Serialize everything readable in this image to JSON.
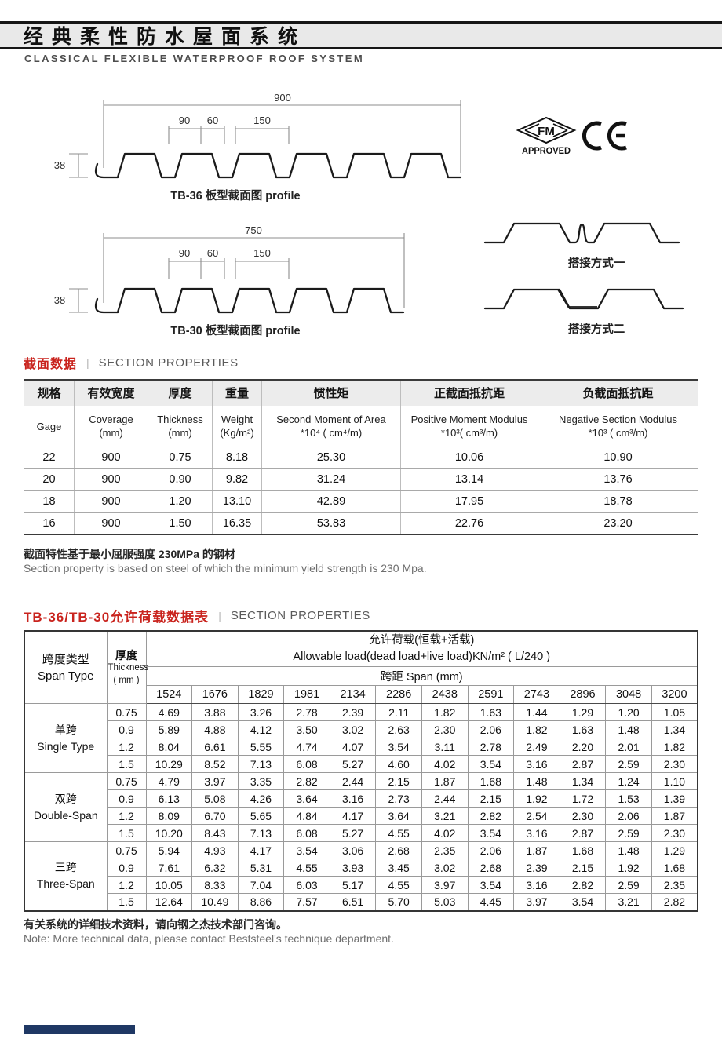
{
  "page": {
    "title_cn": "经典柔性防水屋面系统",
    "subtitle_en": "CLASSICAL FLEXIBLE WATERPROOF ROOF SYSTEM"
  },
  "colors": {
    "accent_red": "#c9231d",
    "header_band": "#e9e9e9",
    "footer_bar": "#1f3864"
  },
  "drawings": {
    "profile_tb36": {
      "label": "TB-36 板型截面图 profile",
      "dim_overall": "900",
      "dim_a": "90",
      "dim_b": "60",
      "dim_c": "150",
      "dim_height": "38",
      "ribs": 6
    },
    "profile_tb30": {
      "label": "TB-30 板型截面图 profile",
      "dim_overall": "750",
      "dim_a": "90",
      "dim_b": "60",
      "dim_c": "150",
      "dim_height": "38",
      "ribs": 5
    },
    "lap_method_1": {
      "label": "搭接方式一"
    },
    "lap_method_2": {
      "label": "搭接方式二"
    },
    "certifications": {
      "fm_text": "FM",
      "fm_sub": "APPROVED"
    }
  },
  "section_properties": {
    "heading_cn": "截面数据",
    "heading_sep": "|",
    "heading_en": "SECTION PROPERTIES",
    "columns": [
      {
        "cn": "规格",
        "en": "Gage",
        "unit": ""
      },
      {
        "cn": "有效宽度",
        "en": "Coverage",
        "unit": "(mm)"
      },
      {
        "cn": "厚度",
        "en": "Thickness",
        "unit": "(mm)"
      },
      {
        "cn": "重量",
        "en": "Weight",
        "unit": "(Kg/m²)"
      },
      {
        "cn": "惯性矩",
        "en": "Second Moment of Area",
        "unit": "*10⁴ ( cm⁴/m)"
      },
      {
        "cn": "正截面抵抗距",
        "en": "Positive Moment Modulus",
        "unit": "*10³( cm³/m)"
      },
      {
        "cn": "负截面抵抗距",
        "en": "Negative Section Modulus",
        "unit": "*10³ ( cm³/m)"
      }
    ],
    "rows": [
      [
        "22",
        "900",
        "0.75",
        "8.18",
        "25.30",
        "10.06",
        "10.90"
      ],
      [
        "20",
        "900",
        "0.90",
        "9.82",
        "31.24",
        "13.14",
        "13.76"
      ],
      [
        "18",
        "900",
        "1.20",
        "13.10",
        "42.89",
        "17.95",
        "18.78"
      ],
      [
        "16",
        "900",
        "1.50",
        "16.35",
        "53.83",
        "22.76",
        "23.20"
      ]
    ],
    "note_cn": "截面特性基于最小屈服强度 230MPa 的钢材",
    "note_en": "Section property is based on steel of which the minimum yield strength is 230 Mpa."
  },
  "load_table": {
    "heading_cn": "TB-36/TB-30允许荷载数据表",
    "heading_sep": "|",
    "heading_en": "SECTION PROPERTIES",
    "span_type_cn": "跨度类型",
    "span_type_en": "Span Type",
    "thickness_cn": "厚度",
    "thickness_en": "Thickness",
    "thickness_unit": "( mm )",
    "load_header_cn": "允许荷载(恒载+活载)",
    "load_header_en": "Allowable load(dead load+live load)KN/m² ( L/240 )",
    "span_header": "跨距  Span (mm)",
    "spans": [
      "1524",
      "1676",
      "1829",
      "1981",
      "2134",
      "2286",
      "2438",
      "2591",
      "2743",
      "2896",
      "3048",
      "3200"
    ],
    "groups": [
      {
        "type_cn": "单跨",
        "type_en": "Single Type",
        "rows": [
          {
            "thickness": "0.75",
            "values": [
              "4.69",
              "3.88",
              "3.26",
              "2.78",
              "2.39",
              "2.11",
              "1.82",
              "1.63",
              "1.44",
              "1.29",
              "1.20",
              "1.05"
            ]
          },
          {
            "thickness": "0.9",
            "values": [
              "5.89",
              "4.88",
              "4.12",
              "3.50",
              "3.02",
              "2.63",
              "2.30",
              "2.06",
              "1.82",
              "1.63",
              "1.48",
              "1.34"
            ]
          },
          {
            "thickness": "1.2",
            "values": [
              "8.04",
              "6.61",
              "5.55",
              "4.74",
              "4.07",
              "3.54",
              "3.11",
              "2.78",
              "2.49",
              "2.20",
              "2.01",
              "1.82"
            ]
          },
          {
            "thickness": "1.5",
            "values": [
              "10.29",
              "8.52",
              "7.13",
              "6.08",
              "5.27",
              "4.60",
              "4.02",
              "3.54",
              "3.16",
              "2.87",
              "2.59",
              "2.30"
            ]
          }
        ]
      },
      {
        "type_cn": "双跨",
        "type_en": "Double-Span",
        "rows": [
          {
            "thickness": "0.75",
            "values": [
              "4.79",
              "3.97",
              "3.35",
              "2.82",
              "2.44",
              "2.15",
              "1.87",
              "1.68",
              "1.48",
              "1.34",
              "1.24",
              "1.10"
            ]
          },
          {
            "thickness": "0.9",
            "values": [
              "6.13",
              "5.08",
              "4.26",
              "3.64",
              "3.16",
              "2.73",
              "2.44",
              "2.15",
              "1.92",
              "1.72",
              "1.53",
              "1.39"
            ]
          },
          {
            "thickness": "1.2",
            "values": [
              "8.09",
              "6.70",
              "5.65",
              "4.84",
              "4.17",
              "3.64",
              "3.21",
              "2.82",
              "2.54",
              "2.30",
              "2.06",
              "1.87"
            ]
          },
          {
            "thickness": "1.5",
            "values": [
              "10.20",
              "8.43",
              "7.13",
              "6.08",
              "5.27",
              "4.55",
              "4.02",
              "3.54",
              "3.16",
              "2.87",
              "2.59",
              "2.30"
            ]
          }
        ]
      },
      {
        "type_cn": "三跨",
        "type_en": "Three-Span",
        "rows": [
          {
            "thickness": "0.75",
            "values": [
              "5.94",
              "4.93",
              "4.17",
              "3.54",
              "3.06",
              "2.68",
              "2.35",
              "2.06",
              "1.87",
              "1.68",
              "1.48",
              "1.29"
            ]
          },
          {
            "thickness": "0.9",
            "values": [
              "7.61",
              "6.32",
              "5.31",
              "4.55",
              "3.93",
              "3.45",
              "3.02",
              "2.68",
              "2.39",
              "2.15",
              "1.92",
              "1.68"
            ]
          },
          {
            "thickness": "1.2",
            "values": [
              "10.05",
              "8.33",
              "7.04",
              "6.03",
              "5.17",
              "4.55",
              "3.97",
              "3.54",
              "3.16",
              "2.82",
              "2.59",
              "2.35"
            ]
          },
          {
            "thickness": "1.5",
            "values": [
              "12.64",
              "10.49",
              "8.86",
              "7.57",
              "6.51",
              "5.70",
              "5.03",
              "4.45",
              "3.97",
              "3.54",
              "3.21",
              "2.82"
            ]
          }
        ]
      }
    ]
  },
  "footer": {
    "note_cn": "有关系统的详细技术资料，请向钢之杰技术部门咨询。",
    "note_en": "Note:  More technical data, please contact Beststeel's  technique department."
  }
}
